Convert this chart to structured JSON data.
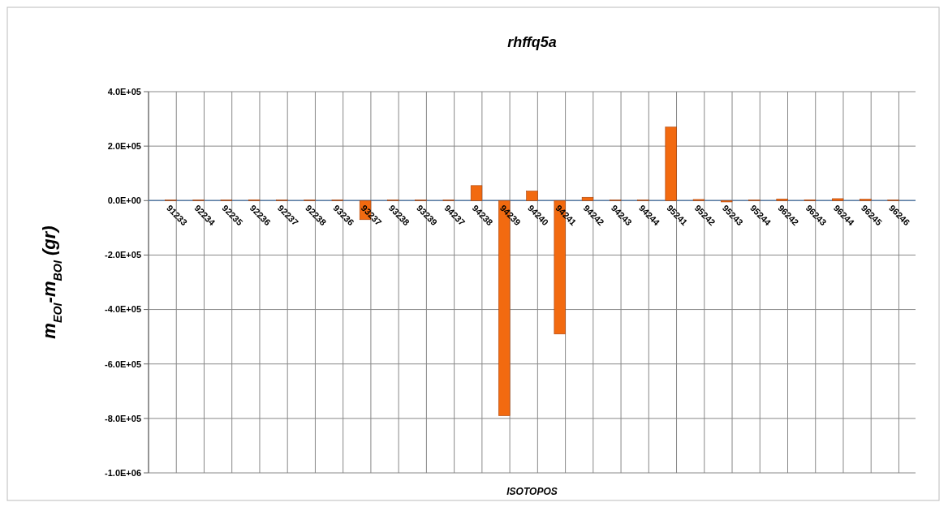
{
  "chart_data": {
    "type": "bar",
    "title": "rhffq5a",
    "xlabel": "ISOTOPOS",
    "ylabel": "m$_{EOI}$-m$_{BOI}$  (gr)",
    "categories": [
      "91233",
      "92234",
      "92235",
      "92236",
      "92237",
      "92238",
      "93236",
      "93237",
      "93238",
      "93239",
      "94237",
      "94238",
      "94239",
      "94240",
      "94241",
      "94242",
      "94243",
      "94244",
      "95241",
      "95242",
      "95243",
      "95244",
      "96242",
      "96243",
      "96244",
      "96245",
      "96246"
    ],
    "values": [
      2000,
      2000,
      2000,
      3000,
      2000,
      2000,
      2000,
      -70000,
      2000,
      2000,
      2000,
      55000,
      -790000,
      35000,
      -490000,
      12000,
      2000,
      2000,
      270000,
      4000,
      -5000,
      2000,
      6000,
      3000,
      7000,
      5000,
      2000
    ],
    "color": "#f26a10",
    "ylim": [
      -1000000,
      400000
    ],
    "yticks": [
      {
        "value": -1000000,
        "label": "-1.0E+06"
      },
      {
        "value": -800000,
        "label": "-8.0E+05"
      },
      {
        "value": -600000,
        "label": "-6.0E+05"
      },
      {
        "value": -400000,
        "label": "-4.0E+05"
      },
      {
        "value": -200000,
        "label": "-2.0E+05"
      },
      {
        "value": 0,
        "label": "0.0E+00"
      },
      {
        "value": 200000,
        "label": "2.0E+05"
      },
      {
        "value": 400000,
        "label": "4.0E+05"
      }
    ],
    "grid": true
  }
}
